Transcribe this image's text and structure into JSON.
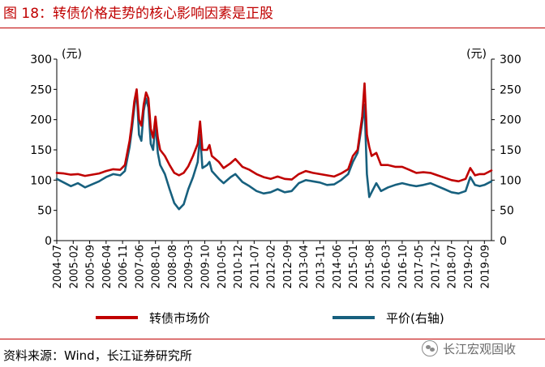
{
  "figure": {
    "title": "图 18：转债价格走势的核心影响因素是正股",
    "source": "资料来源：Wind，长江证券研究所",
    "watermark": "长江宏观固收"
  },
  "colors": {
    "title": "#c00000",
    "series_price": "#c00000",
    "series_parity": "#17607e",
    "text": "#000000"
  },
  "chart_data": {
    "type": "line",
    "left_unit": "(元)",
    "right_unit": "(元)",
    "left_ylim": [
      0,
      300
    ],
    "right_ylim": [
      0,
      300
    ],
    "left_ticks": [
      "300",
      "250",
      "200",
      "150",
      "100",
      "50",
      "0"
    ],
    "right_ticks": [
      "300",
      "250",
      "200",
      "150",
      "100",
      "50",
      "0"
    ],
    "x_ticks": [
      "2004-07",
      "2005-02",
      "2005-09",
      "2006-04",
      "2006-11",
      "2007-06",
      "2008-01",
      "2008-08",
      "2009-03",
      "2009-10",
      "2010-05",
      "2010-12",
      "2011-07",
      "2012-02",
      "2012-09",
      "2013-04",
      "2013-11",
      "2014-06",
      "2015-01",
      "2015-08",
      "2016-03",
      "2016-10",
      "2017-05",
      "2017-12",
      "2018-07",
      "2019-02",
      "2019-09"
    ],
    "x_range": [
      "2004-07",
      "2019-12"
    ],
    "grid": false,
    "legend_position": "bottom",
    "series": [
      {
        "name": "转债市场价",
        "axis": "left",
        "points": [
          [
            "2004-07",
            112
          ],
          [
            "2004-10",
            111
          ],
          [
            "2005-01",
            109
          ],
          [
            "2005-04",
            110
          ],
          [
            "2005-07",
            107
          ],
          [
            "2005-10",
            109
          ],
          [
            "2006-01",
            111
          ],
          [
            "2006-04",
            115
          ],
          [
            "2006-07",
            118
          ],
          [
            "2006-10",
            117
          ],
          [
            "2006-12",
            125
          ],
          [
            "2007-01",
            145
          ],
          [
            "2007-02",
            165
          ],
          [
            "2007-03",
            195
          ],
          [
            "2007-04",
            230
          ],
          [
            "2007-05",
            250
          ],
          [
            "2007-06",
            200
          ],
          [
            "2007-07",
            190
          ],
          [
            "2007-08",
            225
          ],
          [
            "2007-09",
            245
          ],
          [
            "2007-10",
            235
          ],
          [
            "2007-11",
            185
          ],
          [
            "2007-12",
            170
          ],
          [
            "2008-01",
            205
          ],
          [
            "2008-02",
            170
          ],
          [
            "2008-03",
            150
          ],
          [
            "2008-05",
            140
          ],
          [
            "2008-07",
            125
          ],
          [
            "2008-09",
            112
          ],
          [
            "2008-11",
            108
          ],
          [
            "2009-01",
            112
          ],
          [
            "2009-03",
            123
          ],
          [
            "2009-05",
            140
          ],
          [
            "2009-07",
            160
          ],
          [
            "2009-08",
            197
          ],
          [
            "2009-09",
            150
          ],
          [
            "2009-11",
            150
          ],
          [
            "2009-12",
            158
          ],
          [
            "2010-01",
            140
          ],
          [
            "2010-04",
            130
          ],
          [
            "2010-06",
            120
          ],
          [
            "2010-09",
            128
          ],
          [
            "2010-11",
            135
          ],
          [
            "2011-02",
            122
          ],
          [
            "2011-05",
            117
          ],
          [
            "2011-08",
            110
          ],
          [
            "2011-11",
            105
          ],
          [
            "2012-02",
            102
          ],
          [
            "2012-05",
            106
          ],
          [
            "2012-08",
            102
          ],
          [
            "2012-11",
            101
          ],
          [
            "2013-02",
            110
          ],
          [
            "2013-05",
            115
          ],
          [
            "2013-08",
            112
          ],
          [
            "2013-11",
            110
          ],
          [
            "2014-02",
            108
          ],
          [
            "2014-05",
            106
          ],
          [
            "2014-08",
            111
          ],
          [
            "2014-11",
            118
          ],
          [
            "2015-01",
            140
          ],
          [
            "2015-03",
            150
          ],
          [
            "2015-05",
            205
          ],
          [
            "2015-06",
            260
          ],
          [
            "2015-07",
            175
          ],
          [
            "2015-08",
            155
          ],
          [
            "2015-09",
            140
          ],
          [
            "2015-11",
            145
          ],
          [
            "2016-01",
            125
          ],
          [
            "2016-04",
            125
          ],
          [
            "2016-07",
            122
          ],
          [
            "2016-10",
            122
          ],
          [
            "2017-01",
            117
          ],
          [
            "2017-04",
            112
          ],
          [
            "2017-07",
            113
          ],
          [
            "2017-10",
            112
          ],
          [
            "2018-01",
            108
          ],
          [
            "2018-04",
            104
          ],
          [
            "2018-07",
            100
          ],
          [
            "2018-10",
            98
          ],
          [
            "2019-01",
            102
          ],
          [
            "2019-03",
            120
          ],
          [
            "2019-05",
            108
          ],
          [
            "2019-07",
            110
          ],
          [
            "2019-09",
            110
          ],
          [
            "2019-12",
            116
          ]
        ]
      },
      {
        "name": "平价(右轴)",
        "axis": "right",
        "points": [
          [
            "2004-07",
            102
          ],
          [
            "2004-10",
            96
          ],
          [
            "2005-01",
            90
          ],
          [
            "2005-04",
            95
          ],
          [
            "2005-07",
            88
          ],
          [
            "2005-10",
            93
          ],
          [
            "2006-01",
            98
          ],
          [
            "2006-04",
            105
          ],
          [
            "2006-07",
            110
          ],
          [
            "2006-10",
            108
          ],
          [
            "2006-12",
            115
          ],
          [
            "2007-01",
            135
          ],
          [
            "2007-02",
            155
          ],
          [
            "2007-03",
            185
          ],
          [
            "2007-04",
            220
          ],
          [
            "2007-05",
            248
          ],
          [
            "2007-06",
            175
          ],
          [
            "2007-07",
            165
          ],
          [
            "2007-08",
            215
          ],
          [
            "2007-09",
            235
          ],
          [
            "2007-10",
            220
          ],
          [
            "2007-11",
            160
          ],
          [
            "2007-12",
            150
          ],
          [
            "2008-01",
            195
          ],
          [
            "2008-02",
            145
          ],
          [
            "2008-03",
            125
          ],
          [
            "2008-05",
            110
          ],
          [
            "2008-07",
            85
          ],
          [
            "2008-09",
            62
          ],
          [
            "2008-11",
            52
          ],
          [
            "2009-01",
            60
          ],
          [
            "2009-03",
            85
          ],
          [
            "2009-05",
            105
          ],
          [
            "2009-07",
            130
          ],
          [
            "2009-08",
            175
          ],
          [
            "2009-09",
            120
          ],
          [
            "2009-11",
            125
          ],
          [
            "2009-12",
            130
          ],
          [
            "2010-01",
            115
          ],
          [
            "2010-04",
            102
          ],
          [
            "2010-06",
            95
          ],
          [
            "2010-09",
            105
          ],
          [
            "2010-11",
            110
          ],
          [
            "2011-02",
            97
          ],
          [
            "2011-05",
            90
          ],
          [
            "2011-08",
            82
          ],
          [
            "2011-11",
            78
          ],
          [
            "2012-02",
            80
          ],
          [
            "2012-05",
            85
          ],
          [
            "2012-08",
            80
          ],
          [
            "2012-11",
            82
          ],
          [
            "2013-02",
            95
          ],
          [
            "2013-05",
            100
          ],
          [
            "2013-08",
            98
          ],
          [
            "2013-11",
            96
          ],
          [
            "2014-02",
            92
          ],
          [
            "2014-05",
            93
          ],
          [
            "2014-08",
            100
          ],
          [
            "2014-11",
            110
          ],
          [
            "2015-01",
            130
          ],
          [
            "2015-03",
            145
          ],
          [
            "2015-05",
            195
          ],
          [
            "2015-06",
            225
          ],
          [
            "2015-07",
            110
          ],
          [
            "2015-08",
            72
          ],
          [
            "2015-09",
            80
          ],
          [
            "2015-11",
            95
          ],
          [
            "2016-01",
            82
          ],
          [
            "2016-04",
            88
          ],
          [
            "2016-07",
            92
          ],
          [
            "2016-10",
            95
          ],
          [
            "2017-01",
            92
          ],
          [
            "2017-04",
            90
          ],
          [
            "2017-07",
            92
          ],
          [
            "2017-10",
            95
          ],
          [
            "2018-01",
            90
          ],
          [
            "2018-04",
            85
          ],
          [
            "2018-07",
            80
          ],
          [
            "2018-10",
            78
          ],
          [
            "2019-01",
            82
          ],
          [
            "2019-03",
            105
          ],
          [
            "2019-05",
            92
          ],
          [
            "2019-07",
            90
          ],
          [
            "2019-09",
            92
          ],
          [
            "2019-12",
            98
          ]
        ]
      }
    ]
  }
}
